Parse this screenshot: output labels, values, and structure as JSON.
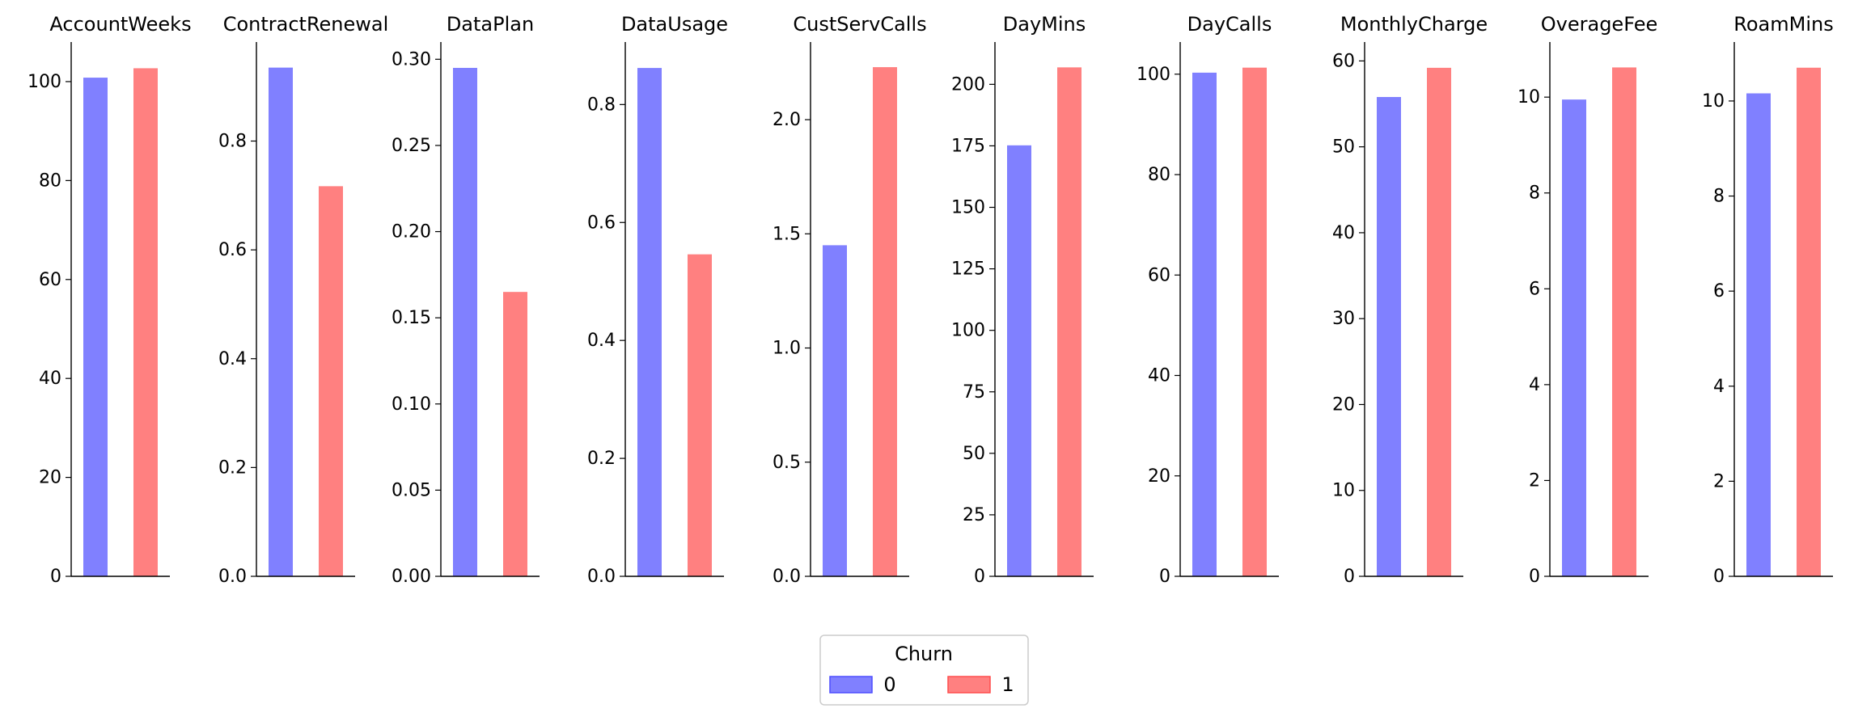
{
  "colors": {
    "class0": "#8080ff",
    "class1": "#ff8080",
    "class0_edge": "#4d4dff",
    "class1_edge": "#ff4d4d"
  },
  "legend": {
    "title": "Churn",
    "labels": [
      "0",
      "1"
    ],
    "placement": "bottom-center"
  },
  "chart_data": [
    {
      "type": "bar",
      "title": "AccountWeeks",
      "categories": [
        "0",
        "1"
      ],
      "values": [
        100.8,
        102.7
      ],
      "ylim": [
        0,
        108
      ],
      "yticks": [
        0,
        20,
        40,
        60,
        80,
        100
      ],
      "tick_labels": [
        "0",
        "20",
        "40",
        "60",
        "80",
        "100"
      ]
    },
    {
      "type": "bar",
      "title": "ContractRenewal",
      "categories": [
        "0",
        "1"
      ],
      "values": [
        0.935,
        0.717
      ],
      "ylim": [
        0,
        0.982
      ],
      "yticks": [
        0,
        0.2,
        0.4,
        0.6,
        0.8
      ],
      "tick_labels": [
        "0.0",
        "0.2",
        "0.4",
        "0.6",
        "0.8"
      ]
    },
    {
      "type": "bar",
      "title": "DataPlan",
      "categories": [
        "0",
        "1"
      ],
      "values": [
        0.295,
        0.165
      ],
      "ylim": [
        0,
        0.31
      ],
      "yticks": [
        0,
        0.05,
        0.1,
        0.15,
        0.2,
        0.25,
        0.3
      ],
      "tick_labels": [
        "0.00",
        "0.05",
        "0.10",
        "0.15",
        "0.20",
        "0.25",
        "0.30"
      ]
    },
    {
      "type": "bar",
      "title": "DataUsage",
      "categories": [
        "0",
        "1"
      ],
      "values": [
        0.862,
        0.546
      ],
      "ylim": [
        0,
        0.906
      ],
      "yticks": [
        0,
        0.2,
        0.4,
        0.6,
        0.8
      ],
      "tick_labels": [
        "0.0",
        "0.2",
        "0.4",
        "0.6",
        "0.8"
      ]
    },
    {
      "type": "bar",
      "title": "CustServCalls",
      "categories": [
        "0",
        "1"
      ],
      "values": [
        1.45,
        2.23
      ],
      "ylim": [
        0,
        2.34
      ],
      "yticks": [
        0,
        0.5,
        1,
        1.5,
        2
      ],
      "tick_labels": [
        "0.0",
        "0.5",
        "1.0",
        "1.5",
        "2.0"
      ]
    },
    {
      "type": "bar",
      "title": "DayMins",
      "categories": [
        "0",
        "1"
      ],
      "values": [
        175.2,
        206.9
      ],
      "ylim": [
        0,
        217.2
      ],
      "yticks": [
        0,
        25,
        50,
        75,
        100,
        125,
        150,
        175,
        200
      ],
      "tick_labels": [
        "0",
        "25",
        "50",
        "75",
        "100",
        "125",
        "150",
        "175",
        "200"
      ]
    },
    {
      "type": "bar",
      "title": "DayCalls",
      "categories": [
        "0",
        "1"
      ],
      "values": [
        100.3,
        101.3
      ],
      "ylim": [
        0,
        106.4
      ],
      "yticks": [
        0,
        20,
        40,
        60,
        80,
        100
      ],
      "tick_labels": [
        "0",
        "20",
        "40",
        "60",
        "80",
        "100"
      ]
    },
    {
      "type": "bar",
      "title": "MonthlyCharge",
      "categories": [
        "0",
        "1"
      ],
      "values": [
        55.8,
        59.2
      ],
      "ylim": [
        0,
        62.2
      ],
      "yticks": [
        0,
        10,
        20,
        30,
        40,
        50,
        60
      ],
      "tick_labels": [
        "0",
        "10",
        "20",
        "30",
        "40",
        "50",
        "60"
      ]
    },
    {
      "type": "bar",
      "title": "OverageFee",
      "categories": [
        "0",
        "1"
      ],
      "values": [
        9.95,
        10.62
      ],
      "ylim": [
        0,
        11.15
      ],
      "yticks": [
        0,
        2,
        4,
        6,
        8,
        10
      ],
      "tick_labels": [
        "0",
        "2",
        "4",
        "6",
        "8",
        "10"
      ]
    },
    {
      "type": "bar",
      "title": "RoamMins",
      "categories": [
        "0",
        "1"
      ],
      "values": [
        10.16,
        10.7
      ],
      "ylim": [
        0,
        11.24
      ],
      "yticks": [
        0,
        2,
        4,
        6,
        8,
        10
      ],
      "tick_labels": [
        "0",
        "2",
        "4",
        "6",
        "8",
        "10"
      ]
    }
  ]
}
